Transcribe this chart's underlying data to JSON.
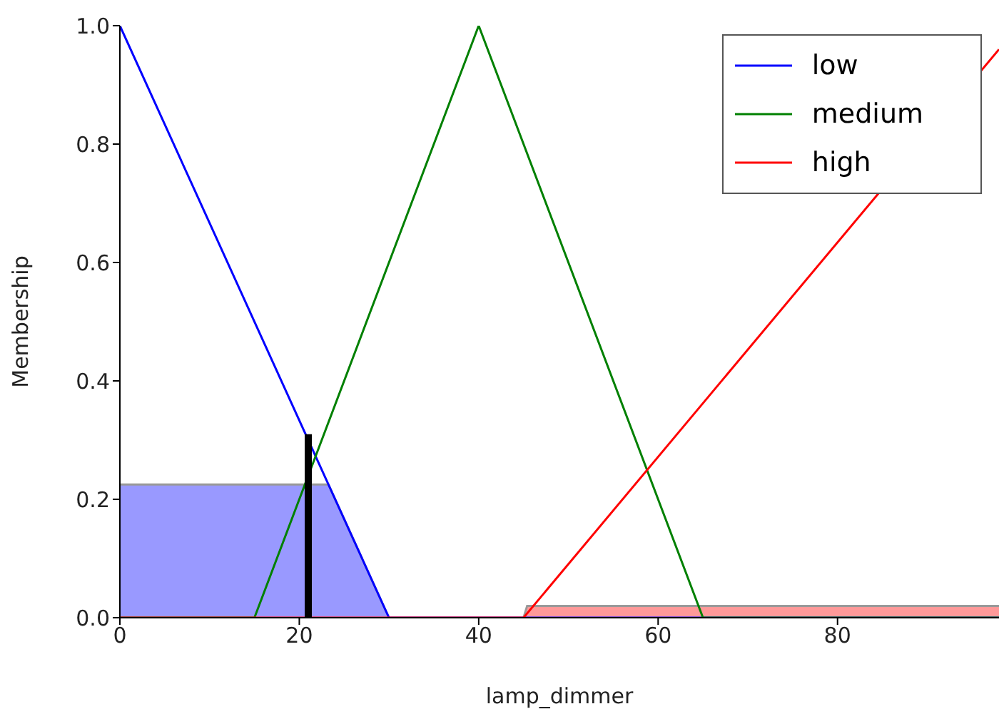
{
  "chart_data": {
    "type": "line",
    "xlabel": "lamp_dimmer",
    "ylabel": "Membership",
    "xlim": [
      0,
      98
    ],
    "xticks": [
      0,
      20,
      40,
      60,
      80
    ],
    "ylim": [
      0,
      1
    ],
    "yticks": [
      {
        "value": 0,
        "label": "0.0"
      },
      {
        "value": 0.2,
        "label": "0.2"
      },
      {
        "value": 0.4,
        "label": "0.4"
      },
      {
        "value": 0.6,
        "label": "0.6"
      },
      {
        "value": 0.8,
        "label": "0.8"
      },
      {
        "value": 1,
        "label": "1.0"
      }
    ],
    "grid": false,
    "legend": "top right",
    "marker": "none",
    "series": [
      {
        "type": "area",
        "color": "#9999ff",
        "x": [
          0,
          23.25,
          30
        ],
        "values": [
          0.225,
          0.225,
          0
        ]
      },
      {
        "type": "area",
        "color": "#ff9999",
        "x": [
          45,
          45.4,
          98
        ],
        "values": [
          0,
          0.02,
          0.02
        ]
      },
      {
        "name": "low",
        "color": "#0000ff",
        "x": [
          0,
          30,
          98
        ],
        "values": [
          1,
          0,
          0
        ]
      },
      {
        "name": "medium",
        "color": "#008000",
        "x": [
          0,
          15,
          40,
          65,
          98
        ],
        "values": [
          0,
          0,
          1,
          0,
          0
        ]
      },
      {
        "name": "high",
        "color": "#ff0000",
        "x": [
          0,
          45,
          98
        ],
        "values": [
          0,
          0,
          0.96
        ]
      },
      {
        "color": "#000000",
        "x": [
          21,
          21
        ],
        "values": [
          0,
          0.31
        ]
      }
    ]
  }
}
